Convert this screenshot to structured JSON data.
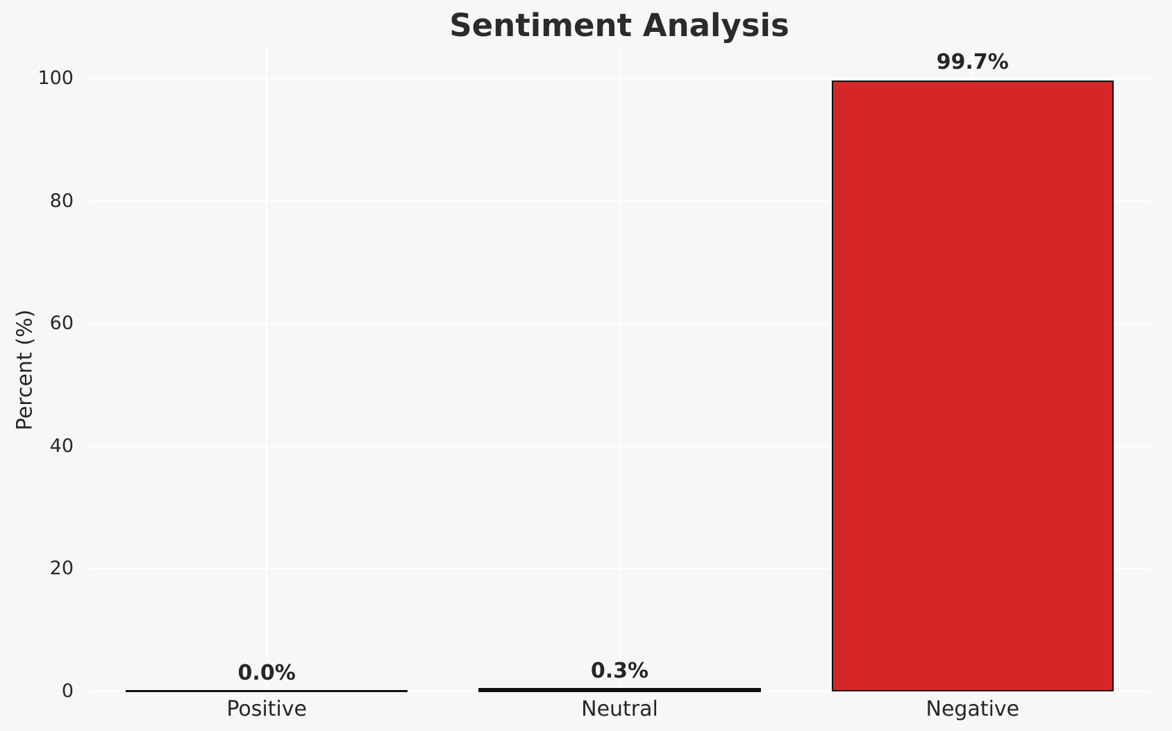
{
  "chart_data": {
    "type": "bar",
    "title": "Sentiment Analysis",
    "xlabel": "",
    "ylabel": "Percent (%)",
    "categories": [
      "Positive",
      "Neutral",
      "Negative"
    ],
    "values": [
      0.0,
      0.3,
      99.7
    ],
    "value_labels": [
      "0.0%",
      "0.3%",
      "99.7%"
    ],
    "yticks": [
      0,
      20,
      40,
      60,
      80,
      100
    ],
    "ylim": [
      0,
      105
    ],
    "grid": "on",
    "legend_position": "none",
    "bar_width_fraction": 0.8
  },
  "colors": {
    "background": "#f7f7f7",
    "gridline": "#ffffff",
    "bar_fill": "#d62728",
    "bar_edge": "#111111",
    "text": "#262626",
    "title_text": "#2b2b2b"
  }
}
